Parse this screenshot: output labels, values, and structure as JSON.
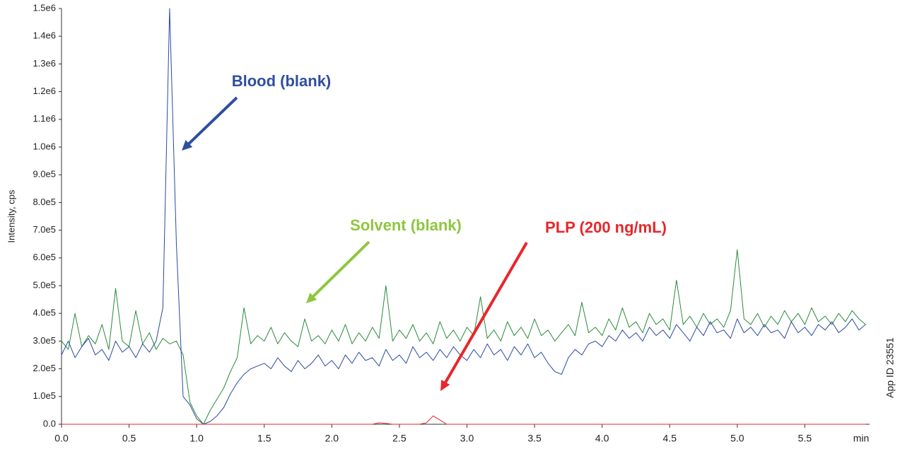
{
  "chart_data": {
    "type": "line",
    "y_label": "Intensity, cps",
    "x_label": "min",
    "side_note": "App ID 23551",
    "xlim": [
      0,
      6.0
    ],
    "ylim": [
      0,
      1500000
    ],
    "xticks": [
      {
        "value": 0,
        "label": "0.0"
      },
      0.5,
      {
        "value": 1,
        "label": "1.0"
      },
      1.5,
      {
        "value": 2,
        "label": "2.0"
      },
      2.5,
      {
        "value": 3,
        "label": "3.0"
      },
      3.5,
      {
        "value": 4,
        "label": "4.0"
      },
      4.5,
      {
        "value": 5,
        "label": "5.0"
      },
      5.5
    ],
    "yticks": [
      {
        "value": 0,
        "label": "0.0"
      },
      {
        "value": 100000,
        "label": "1.0e5"
      },
      {
        "value": 200000,
        "label": "2.0e5"
      },
      {
        "value": 300000,
        "label": "3.0e5"
      },
      {
        "value": 400000,
        "label": "4.0e5"
      },
      {
        "value": 500000,
        "label": "5.0e5"
      },
      {
        "value": 600000,
        "label": "6.0e5"
      },
      {
        "value": 700000,
        "label": "7.0e5"
      },
      {
        "value": 800000,
        "label": "8.0e5"
      },
      {
        "value": 900000,
        "label": "9.0e5"
      },
      {
        "value": 1000000,
        "label": "1.0e6"
      },
      {
        "value": 1100000,
        "label": "1.1e6"
      },
      {
        "value": 1200000,
        "label": "1.2e6"
      },
      {
        "value": 1300000,
        "label": "1.3e6"
      },
      {
        "value": 1400000,
        "label": "1.4e6"
      },
      {
        "value": 1500000,
        "label": "1.5e6"
      }
    ],
    "grid": false,
    "x": [
      0,
      0.05,
      0.1,
      0.15,
      0.2,
      0.25,
      0.3,
      0.35,
      0.4,
      0.45,
      0.5,
      0.55,
      0.6,
      0.65,
      0.7,
      0.75,
      0.8,
      0.85,
      0.9,
      0.95,
      1,
      1.05,
      1.1,
      1.15,
      1.2,
      1.25,
      1.3,
      1.35,
      1.4,
      1.45,
      1.5,
      1.55,
      1.6,
      1.65,
      1.7,
      1.75,
      1.8,
      1.85,
      1.9,
      1.95,
      2,
      2.05,
      2.1,
      2.15,
      2.2,
      2.25,
      2.3,
      2.35,
      2.4,
      2.45,
      2.5,
      2.55,
      2.6,
      2.65,
      2.7,
      2.75,
      2.8,
      2.85,
      2.9,
      2.95,
      3,
      3.05,
      3.1,
      3.15,
      3.2,
      3.25,
      3.3,
      3.35,
      3.4,
      3.45,
      3.5,
      3.55,
      3.6,
      3.65,
      3.7,
      3.75,
      3.8,
      3.85,
      3.9,
      3.95,
      4,
      4.05,
      4.1,
      4.15,
      4.2,
      4.25,
      4.3,
      4.35,
      4.4,
      4.45,
      4.5,
      4.55,
      4.6,
      4.65,
      4.7,
      4.75,
      4.8,
      4.85,
      4.9,
      4.95,
      5,
      5.05,
      5.1,
      5.15,
      5.2,
      5.25,
      5.3,
      5.35,
      5.4,
      5.45,
      5.5,
      5.55,
      5.6,
      5.65,
      5.7,
      5.75,
      5.8,
      5.85,
      5.9,
      5.95
    ],
    "series": [
      {
        "name": "Blood (blank)",
        "color": "#2b4aa0",
        "label_color": "#2f4f9f",
        "values": [
          250000,
          300000,
          240000,
          280000,
          310000,
          250000,
          270000,
          230000,
          300000,
          260000,
          280000,
          240000,
          290000,
          260000,
          300000,
          420000,
          1500000,
          650000,
          100000,
          70000,
          20000,
          0,
          10000,
          30000,
          60000,
          110000,
          150000,
          180000,
          200000,
          210000,
          220000,
          200000,
          240000,
          210000,
          190000,
          230000,
          200000,
          220000,
          250000,
          210000,
          230000,
          200000,
          250000,
          220000,
          260000,
          230000,
          240000,
          210000,
          270000,
          230000,
          250000,
          220000,
          280000,
          240000,
          260000,
          230000,
          270000,
          240000,
          280000,
          250000,
          230000,
          270000,
          240000,
          290000,
          250000,
          270000,
          230000,
          280000,
          250000,
          290000,
          240000,
          260000,
          220000,
          190000,
          180000,
          240000,
          270000,
          250000,
          290000,
          300000,
          280000,
          320000,
          300000,
          340000,
          310000,
          330000,
          300000,
          350000,
          320000,
          340000,
          310000,
          360000,
          330000,
          300000,
          350000,
          320000,
          370000,
          330000,
          340000,
          310000,
          380000,
          330000,
          350000,
          320000,
          360000,
          330000,
          340000,
          310000,
          370000,
          330000,
          350000,
          320000,
          360000,
          340000,
          370000,
          330000,
          350000,
          380000,
          340000,
          360000
        ]
      },
      {
        "name": "Solvent (blank)",
        "color": "#2a8a3a",
        "label_color": "#8dc63f",
        "values": [
          300000,
          270000,
          400000,
          280000,
          320000,
          290000,
          360000,
          270000,
          490000,
          300000,
          280000,
          410000,
          290000,
          330000,
          270000,
          310000,
          290000,
          300000,
          250000,
          80000,
          30000,
          0,
          50000,
          90000,
          130000,
          190000,
          240000,
          420000,
          290000,
          320000,
          300000,
          350000,
          290000,
          330000,
          300000,
          280000,
          380000,
          300000,
          320000,
          290000,
          340000,
          300000,
          360000,
          290000,
          330000,
          300000,
          350000,
          310000,
          500000,
          300000,
          340000,
          310000,
          360000,
          300000,
          330000,
          290000,
          370000,
          310000,
          340000,
          300000,
          350000,
          320000,
          460000,
          310000,
          340000,
          300000,
          370000,
          320000,
          350000,
          310000,
          380000,
          320000,
          340000,
          300000,
          330000,
          360000,
          320000,
          440000,
          330000,
          350000,
          320000,
          380000,
          340000,
          420000,
          350000,
          370000,
          330000,
          400000,
          360000,
          380000,
          340000,
          520000,
          360000,
          390000,
          350000,
          400000,
          360000,
          380000,
          350000,
          410000,
          630000,
          380000,
          360000,
          400000,
          350000,
          390000,
          360000,
          410000,
          370000,
          400000,
          360000,
          420000,
          370000,
          390000,
          360000,
          400000,
          370000,
          410000,
          380000,
          360000
        ]
      },
      {
        "name": "PLP (200 ng/mL)",
        "color": "#e0262b",
        "label_color": "#e8262b",
        "values": [
          0,
          0,
          0,
          0,
          0,
          0,
          0,
          0,
          0,
          0,
          0,
          0,
          0,
          0,
          0,
          0,
          0,
          0,
          0,
          0,
          0,
          0,
          0,
          0,
          0,
          0,
          0,
          0,
          0,
          0,
          0,
          0,
          0,
          0,
          0,
          0,
          0,
          0,
          0,
          0,
          0,
          0,
          0,
          0,
          0,
          0,
          0,
          5000,
          3000,
          0,
          0,
          0,
          0,
          0,
          5000,
          30000,
          15000,
          0,
          0,
          0,
          0,
          0,
          0,
          0,
          0,
          0,
          0,
          0,
          0,
          0,
          0,
          0,
          0,
          0,
          0,
          0,
          0,
          0,
          0,
          0,
          0,
          0,
          0,
          0,
          0,
          0,
          0,
          0,
          0,
          0,
          0,
          0,
          0,
          0,
          0,
          0,
          0,
          0,
          0,
          0,
          0,
          0,
          0,
          0,
          0,
          0,
          0,
          0,
          0,
          0,
          0,
          0,
          0,
          0,
          0,
          0,
          0,
          0,
          0,
          0
        ]
      }
    ]
  }
}
